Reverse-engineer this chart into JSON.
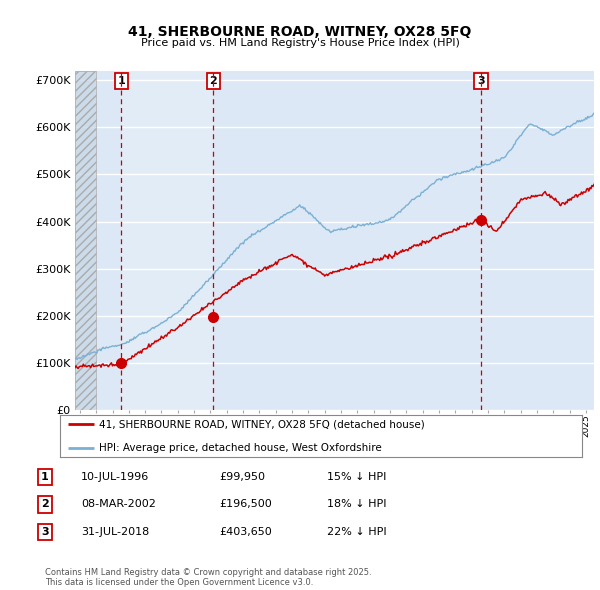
{
  "title_line1": "41, SHERBOURNE ROAD, WITNEY, OX28 5FQ",
  "title_line2": "Price paid vs. HM Land Registry's House Price Index (HPI)",
  "ylim": [
    0,
    720000
  ],
  "yticks": [
    0,
    100000,
    200000,
    300000,
    400000,
    500000,
    600000,
    700000
  ],
  "ytick_labels": [
    "£0",
    "£100K",
    "£200K",
    "£300K",
    "£400K",
    "£500K",
    "£600K",
    "£700K"
  ],
  "background_color": "#ffffff",
  "plot_bg_color": "#dce8f5",
  "grid_color": "#ffffff",
  "transactions": [
    {
      "date_x": 1996.53,
      "price": 99950,
      "label": "1"
    },
    {
      "date_x": 2002.18,
      "price": 196500,
      "label": "2"
    },
    {
      "date_x": 2018.58,
      "price": 403650,
      "label": "3"
    }
  ],
  "transaction_color": "#cc0000",
  "hpi_color": "#7ab0d4",
  "legend_label_red": "41, SHERBOURNE ROAD, WITNEY, OX28 5FQ (detached house)",
  "legend_label_blue": "HPI: Average price, detached house, West Oxfordshire",
  "table_rows": [
    {
      "num": "1",
      "date": "10-JUL-1996",
      "price": "£99,950",
      "note": "15% ↓ HPI"
    },
    {
      "num": "2",
      "date": "08-MAR-2002",
      "price": "£196,500",
      "note": "18% ↓ HPI"
    },
    {
      "num": "3",
      "date": "31-JUL-2018",
      "price": "£403,650",
      "note": "22% ↓ HPI"
    }
  ],
  "footer": "Contains HM Land Registry data © Crown copyright and database right 2025.\nThis data is licensed under the Open Government Licence v3.0.",
  "xmin": 1993.7,
  "xmax": 2025.5
}
